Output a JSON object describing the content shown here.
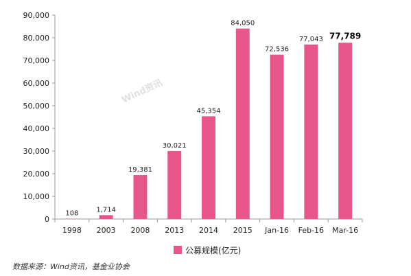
{
  "chart_data": {
    "type": "bar",
    "categories": [
      "1998",
      "2003",
      "2008",
      "2013",
      "2014",
      "2015",
      "Jan-16",
      "Feb-16",
      "Mar-16"
    ],
    "series": [
      {
        "name": "公募规模(亿元)",
        "values": [
          108,
          1714,
          19381,
          30021,
          45354,
          84050,
          72536,
          77043,
          77789
        ],
        "value_labels": [
          "108",
          "1,714",
          "19,381",
          "30,021",
          "45,354",
          "84,050",
          "72,536",
          "77,043",
          "77,789"
        ]
      }
    ],
    "ylim": [
      0,
      90000
    ],
    "yticks": [
      0,
      10000,
      20000,
      30000,
      40000,
      50000,
      60000,
      70000,
      80000,
      90000
    ],
    "ytick_labels": [
      "0",
      "10,000",
      "20,000",
      "30,000",
      "40,000",
      "50,000",
      "60,000",
      "70,000",
      "80,000",
      "90,000"
    ],
    "legend_position": "bottom",
    "grid": false,
    "colors": {
      "bar": "#e8558a",
      "axis": "#999999"
    },
    "emphasized_index": 8
  },
  "watermark": "Wind资讯",
  "source": "数据来源：Wind资讯，基金业协会"
}
